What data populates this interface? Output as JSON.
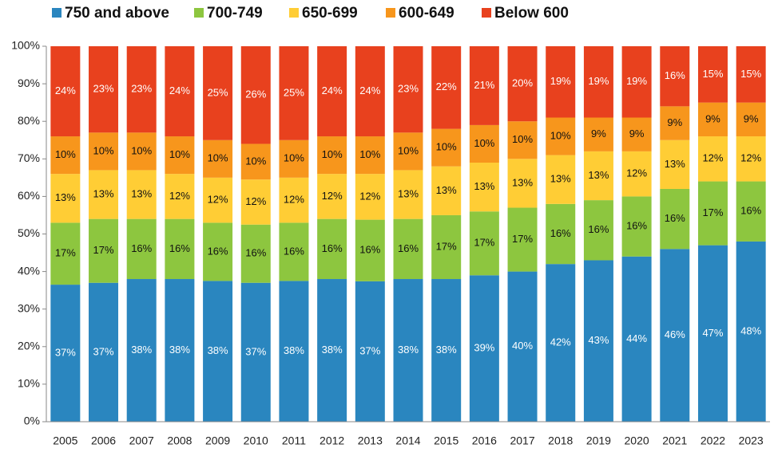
{
  "chart_data": {
    "type": "stacked_bar",
    "categories": [
      "2005",
      "2006",
      "2007",
      "2008",
      "2009",
      "2010",
      "2011",
      "2012",
      "2013",
      "2014",
      "2015",
      "2016",
      "2017",
      "2018",
      "2019",
      "2020",
      "2021",
      "2022",
      "2023"
    ],
    "series": [
      {
        "name": "750 and above",
        "color": "#2a86bf",
        "values": [
          36.5,
          37,
          38,
          38,
          37.5,
          37,
          37.5,
          38,
          37.4,
          38,
          38,
          39,
          40,
          42,
          43,
          44,
          46,
          47,
          48
        ],
        "value_labels": [
          "37%",
          "37%",
          "38%",
          "38%",
          "38%",
          "37%",
          "38%",
          "38%",
          "37%",
          "38%",
          "38%",
          "39%",
          "40%",
          "42%",
          "43%",
          "44%",
          "46%",
          "47%",
          "48%"
        ]
      },
      {
        "name": "700-749",
        "color": "#8dc63f",
        "values": [
          16.5,
          17,
          16,
          16,
          15.5,
          15.5,
          15.5,
          16,
          16.4,
          16,
          17,
          17,
          17,
          16,
          16,
          16,
          16,
          17,
          16
        ],
        "value_labels": [
          "17%",
          "17%",
          "16%",
          "16%",
          "16%",
          "16%",
          "16%",
          "16%",
          "16%",
          "16%",
          "17%",
          "17%",
          "17%",
          "16%",
          "16%",
          "16%",
          "16%",
          "17%",
          "16%"
        ]
      },
      {
        "name": "650-699",
        "color": "#ffcd35",
        "values": [
          13,
          13,
          13,
          12,
          12,
          12,
          12,
          12,
          12.2,
          13,
          13,
          13,
          13,
          13,
          13,
          12,
          13,
          12,
          12
        ],
        "value_labels": [
          "13%",
          "13%",
          "13%",
          "12%",
          "12%",
          "12%",
          "12%",
          "12%",
          "12%",
          "13%",
          "13%",
          "13%",
          "13%",
          "13%",
          "13%",
          "12%",
          "13%",
          "12%",
          "12%"
        ]
      },
      {
        "name": "600-649",
        "color": "#f7961c",
        "values": [
          10,
          10,
          10,
          10,
          10,
          9.5,
          10,
          10,
          10,
          10,
          10,
          10,
          10,
          10,
          9,
          9,
          9,
          9,
          9
        ],
        "value_labels": [
          "10%",
          "10%",
          "10%",
          "10%",
          "10%",
          "10%",
          "10%",
          "10%",
          "10%",
          "10%",
          "10%",
          "10%",
          "10%",
          "10%",
          "9%",
          "9%",
          "9%",
          "9%",
          "9%"
        ]
      },
      {
        "name": "Below 600",
        "color": "#e8411e",
        "values": [
          24,
          23,
          23,
          24,
          25,
          26,
          25,
          24,
          24,
          23,
          22,
          21,
          20,
          19,
          19,
          19,
          16,
          15,
          15
        ],
        "value_labels": [
          "24%",
          "23%",
          "23%",
          "24%",
          "25%",
          "26%",
          "25%",
          "24%",
          "24%",
          "23%",
          "22%",
          "21%",
          "20%",
          "19%",
          "19%",
          "19%",
          "16%",
          "15%",
          "15%"
        ]
      }
    ],
    "ylim": [
      0,
      100
    ],
    "yticks": [
      {
        "value": 0,
        "label": "0%"
      },
      {
        "value": 10,
        "label": "10%"
      },
      {
        "value": 20,
        "label": "20%"
      },
      {
        "value": 30,
        "label": "30%"
      },
      {
        "value": 40,
        "label": "40%"
      },
      {
        "value": 50,
        "label": "50%"
      },
      {
        "value": 60,
        "label": "60%"
      },
      {
        "value": 70,
        "label": "70%"
      },
      {
        "value": 80,
        "label": "80%"
      },
      {
        "value": 90,
        "label": "90%"
      },
      {
        "value": 100,
        "label": "100%"
      }
    ],
    "legend": "top-left",
    "grid": false
  }
}
